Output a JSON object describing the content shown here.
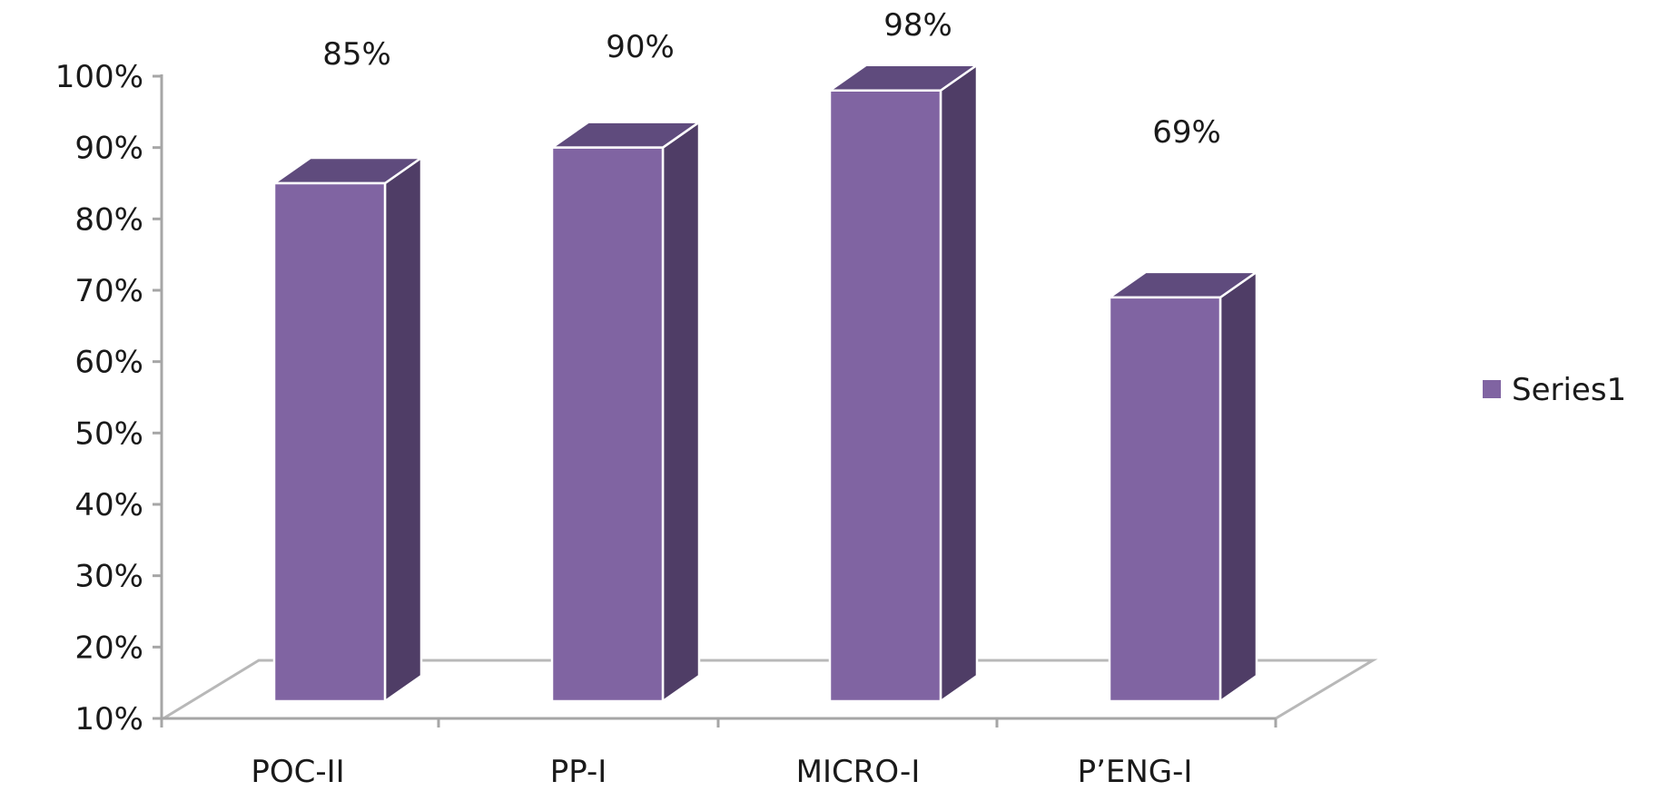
{
  "chart_data": {
    "type": "bar",
    "style": "3d-column",
    "categories": [
      "POC-II",
      "PP-I",
      "MICRO-I",
      "P’ENG-I"
    ],
    "series": [
      {
        "name": "Series1",
        "values": [
          85,
          90,
          98,
          69
        ],
        "color_front": "#8064a2",
        "color_side": "#4f3d66",
        "color_top": "#5f4b7d"
      }
    ],
    "data_labels": [
      "85%",
      "90%",
      "98%",
      "69%"
    ],
    "ylim": [
      10,
      100
    ],
    "yticks": [
      10,
      20,
      30,
      40,
      50,
      60,
      70,
      80,
      90,
      100
    ],
    "ytick_labels": [
      "10%",
      "20%",
      "30%",
      "40%",
      "50%",
      "60%",
      "70%",
      "80%",
      "90%",
      "100%"
    ],
    "grid": false,
    "legend": {
      "position": "right",
      "entries": [
        "Series1"
      ]
    },
    "title": "",
    "xlabel": "",
    "ylabel": ""
  }
}
